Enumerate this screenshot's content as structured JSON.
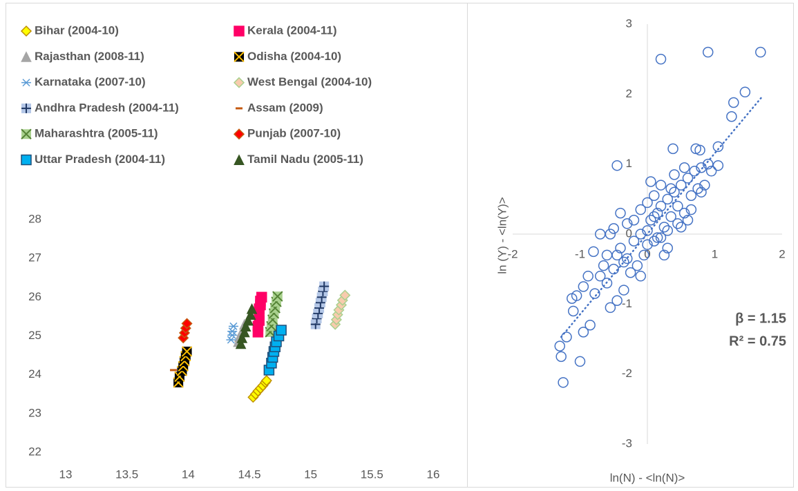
{
  "chart_data": [
    {
      "type": "scatter",
      "xlim": [
        13,
        16
      ],
      "xticks": [
        13,
        13.5,
        14,
        14.5,
        15,
        15.5,
        16
      ],
      "ylim": [
        22,
        28
      ],
      "yticks": [
        22,
        23,
        24,
        25,
        26,
        27,
        28
      ],
      "legend": "top",
      "series": [
        {
          "name": "Bihar (2004-10)",
          "marker": "diamond",
          "color": "#ffff00",
          "edge": "#bf9000",
          "x": [
            14.53,
            14.55,
            14.57,
            14.59,
            14.61,
            14.63,
            14.64
          ],
          "values": [
            23.42,
            23.5,
            23.58,
            23.65,
            23.72,
            23.8,
            23.85
          ]
        },
        {
          "name": "Kerala (2004-11)",
          "marker": "square",
          "color": "#ff0066",
          "edge": "#ff0066",
          "x": [
            14.57,
            14.57,
            14.58,
            14.58,
            14.58,
            14.59,
            14.59,
            14.6
          ],
          "values": [
            25.1,
            25.25,
            25.4,
            25.55,
            25.7,
            25.8,
            25.9,
            26.0
          ]
        },
        {
          "name": "Rajasthan (2008-11)",
          "marker": "triangle",
          "color": "#a5a5a5",
          "edge": "#a5a5a5",
          "x": [
            14.41,
            14.42,
            14.44,
            14.46
          ],
          "values": [
            24.85,
            24.98,
            25.12,
            25.3
          ]
        },
        {
          "name": "Odisha (2004-10)",
          "marker": "square",
          "cross": "x",
          "color": "#000000",
          "edge": "#ffc000",
          "x": [
            13.92,
            13.93,
            13.95,
            13.96,
            13.97,
            13.98,
            13.99
          ],
          "values": [
            23.8,
            23.95,
            24.1,
            24.22,
            24.35,
            24.48,
            24.6
          ]
        },
        {
          "name": "Karnataka (2007-10)",
          "marker": "asterisk",
          "color": "#5b9bd5",
          "edge": "#5b9bd5",
          "x": [
            14.35,
            14.36,
            14.36,
            14.37
          ],
          "values": [
            24.9,
            25.02,
            25.12,
            25.25
          ]
        },
        {
          "name": "West Bengal (2004-10)",
          "marker": "diamond",
          "color": "#f8cbad",
          "edge": "#a9d18e",
          "x": [
            15.2,
            15.21,
            15.22,
            15.23,
            15.25,
            15.26,
            15.28
          ],
          "values": [
            25.3,
            25.42,
            25.55,
            25.67,
            25.8,
            25.92,
            26.05
          ]
        },
        {
          "name": "Andhra Pradesh (2004-11)",
          "marker": "square",
          "cross": "+",
          "color": "#b4c7e7",
          "edge": "#203864",
          "x": [
            15.04,
            15.05,
            15.06,
            15.07,
            15.08,
            15.09,
            15.1,
            15.11
          ],
          "values": [
            25.3,
            25.45,
            25.58,
            25.72,
            25.86,
            26.0,
            26.15,
            26.28
          ]
        },
        {
          "name": "Assam (2009)",
          "marker": "dash",
          "color": "#c55a11",
          "edge": "#c55a11",
          "x": [
            13.88
          ],
          "values": [
            24.12
          ]
        },
        {
          "name": "Maharashtra (2005-11)",
          "marker": "square",
          "cross": "x",
          "color": "#a9d18e",
          "edge": "#548235",
          "x": [
            14.67,
            14.68,
            14.69,
            14.7,
            14.71,
            14.72,
            14.73
          ],
          "values": [
            25.1,
            25.25,
            25.42,
            25.58,
            25.72,
            25.88,
            26.02
          ]
        },
        {
          "name": "Punjab (2007-10)",
          "marker": "diamond",
          "color": "#ff0000",
          "edge": "#c55a11",
          "x": [
            13.96,
            13.97,
            13.98,
            13.99
          ],
          "values": [
            24.95,
            25.08,
            25.2,
            25.32
          ]
        },
        {
          "name": "Uttar Pradesh (2004-11)",
          "marker": "square",
          "color": "#00b0f0",
          "edge": "#1f4e79",
          "x": [
            14.66,
            14.68,
            14.69,
            14.7,
            14.71,
            14.72,
            14.74,
            14.76
          ],
          "values": [
            24.12,
            24.3,
            24.45,
            24.6,
            24.72,
            24.85,
            25.0,
            25.15
          ]
        },
        {
          "name": "Tamil Nadu (2005-11)",
          "marker": "triangle",
          "color": "#375623",
          "edge": "#375623",
          "x": [
            14.43,
            14.44,
            14.46,
            14.47,
            14.49,
            14.51,
            14.52
          ],
          "values": [
            24.8,
            24.95,
            25.1,
            25.25,
            25.4,
            25.55,
            25.7
          ]
        }
      ]
    },
    {
      "type": "scatter",
      "x_label": "ln(N) - <ln(N)>",
      "y_label": "ln (Y) - <ln(Y)>",
      "xlim": [
        -2,
        2
      ],
      "xticks": [
        -2,
        -1,
        0,
        1,
        2
      ],
      "ylim": [
        -3,
        3
      ],
      "yticks": [
        -3,
        -2,
        -1,
        0,
        1,
        2,
        3
      ],
      "marker": "circle",
      "color": "#4472c4",
      "x": [
        0.2,
        0.9,
        1.68,
        -0.45,
        1.45,
        1.28,
        1.25,
        1.05,
        1.05,
        0.95,
        0.72,
        0.78,
        0.38,
        -1.3,
        -1.28,
        -1.25,
        -1.2,
        -1.0,
        -0.95,
        -0.85,
        -1.1,
        -1.05,
        -1.12,
        -0.78,
        -0.88,
        -0.6,
        -0.55,
        -0.45,
        -0.35,
        -0.5,
        -0.65,
        -0.8,
        -0.7,
        -0.55,
        -0.5,
        -0.4,
        -0.3,
        -0.2,
        -0.1,
        0.0,
        0.05,
        0.1,
        0.15,
        0.2,
        0.25,
        0.3,
        0.35,
        0.4,
        0.45,
        0.5,
        0.55,
        0.6,
        0.65,
        0.7,
        0.75,
        0.8,
        0.85,
        0.9,
        0.6,
        0.5,
        0.3,
        0.25,
        0.15,
        -0.05,
        -0.15,
        -0.25,
        -0.35,
        -0.45,
        -0.2,
        -0.1,
        0.0,
        0.1,
        0.2,
        0.05,
        -0.3,
        0.4,
        0.55,
        -0.6,
        -0.7,
        -0.95,
        0.3,
        0.45,
        0.65,
        0.8,
        0.35,
        0.0,
        -0.1,
        0.1,
        0.2,
        -0.4
      ],
      "values": [
        2.5,
        2.6,
        2.6,
        0.98,
        2.03,
        1.88,
        1.68,
        1.25,
        0.98,
        0.9,
        1.22,
        1.2,
        1.22,
        -1.6,
        -1.75,
        -2.12,
        -1.47,
        -1.82,
        -1.4,
        -1.3,
        -1.1,
        -0.88,
        -0.92,
        -0.85,
        -0.6,
        -0.7,
        -1.05,
        -0.95,
        -0.8,
        -0.5,
        -0.45,
        -0.25,
        0.0,
        0.0,
        0.08,
        -0.2,
        -0.35,
        -0.1,
        0.0,
        0.05,
        0.2,
        -0.1,
        0.3,
        0.4,
        0.1,
        0.5,
        0.25,
        0.6,
        0.4,
        0.7,
        0.3,
        0.8,
        0.55,
        0.9,
        0.65,
        0.95,
        0.7,
        1.0,
        0.2,
        0.1,
        -0.2,
        -0.3,
        -0.05,
        -0.3,
        -0.45,
        -0.55,
        -0.4,
        -0.3,
        0.2,
        0.35,
        0.45,
        0.55,
        0.7,
        0.75,
        0.15,
        0.85,
        0.95,
        -0.3,
        -0.6,
        -0.75,
        0.05,
        0.15,
        0.35,
        0.6,
        0.65,
        -0.15,
        -0.6,
        0.25,
        -0.05,
        0.3
      ],
      "trendline": {
        "x": [
          -1.28,
          1.7
        ],
        "values": [
          -1.47,
          1.96
        ]
      },
      "annotations": [
        "β = 1.15",
        "R² = 0.75"
      ]
    }
  ]
}
